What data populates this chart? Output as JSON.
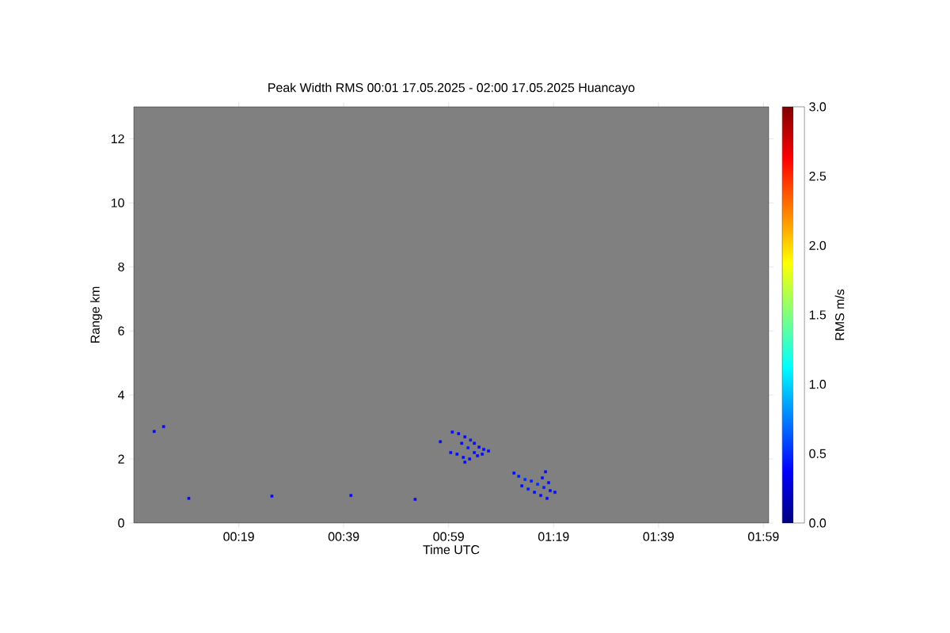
{
  "chart_data": {
    "type": "scatter",
    "title": "Peak Width RMS   00:01 17.05.2025 - 02:00 17.05.2025 Huancayo",
    "xlabel": "Time UTC",
    "ylabel": "Range km",
    "clabel": "RMS m/s",
    "x": [
      0.995,
      1.015,
      1.035,
      1.053,
      1.065,
      1.08,
      1.095,
      1.11,
      1.025,
      1.045,
      1.065,
      0.99,
      1.01,
      1.03,
      1.05,
      1.075,
      1.09,
      1.035,
      0.957,
      1.191,
      1.206,
      1.226,
      1.246,
      1.266,
      1.286,
      1.306,
      1.321,
      1.216,
      1.236,
      1.256,
      1.276,
      1.296,
      1.291,
      1.281,
      1.301,
      0.048,
      0.078,
      0.158,
      0.422,
      0.673,
      0.877
    ],
    "values": [
      2.84,
      2.79,
      2.69,
      2.59,
      2.49,
      2.37,
      2.3,
      2.25,
      2.49,
      2.35,
      2.2,
      2.2,
      2.15,
      2.05,
      2.0,
      2.1,
      2.15,
      1.9,
      2.54,
      1.56,
      1.46,
      1.36,
      1.31,
      1.21,
      1.11,
      1.01,
      0.96,
      1.16,
      1.06,
      0.96,
      0.86,
      0.77,
      1.6,
      1.41,
      1.26,
      2.86,
      3.01,
      0.77,
      0.84,
      0.86,
      0.74
    ],
    "cvalues": [
      0.4,
      0.4,
      0.4,
      0.45,
      0.4,
      0.4,
      0.4,
      0.4,
      0.4,
      0.45,
      0.4,
      0.4,
      0.4,
      0.4,
      0.4,
      0.4,
      0.4,
      0.4,
      0.4,
      0.4,
      0.45,
      0.5,
      0.45,
      0.5,
      0.45,
      0.4,
      0.4,
      0.4,
      0.45,
      0.4,
      0.4,
      0.4,
      0.4,
      0.4,
      0.4,
      0.4,
      0.4,
      0.4,
      0.4,
      0.4,
      0.4
    ],
    "marker": "square",
    "xlim": [
      -0.0167,
      2.0
    ],
    "xticks": [
      {
        "value": 0.3167,
        "label": "00:19"
      },
      {
        "value": 0.65,
        "label": "00:39"
      },
      {
        "value": 0.9833,
        "label": "00:59"
      },
      {
        "value": 1.3167,
        "label": "01:19"
      },
      {
        "value": 1.65,
        "label": "01:39"
      },
      {
        "value": 1.9833,
        "label": "01:59"
      }
    ],
    "ylim": [
      0,
      13
    ],
    "yticks": [
      0,
      2,
      4,
      6,
      8,
      10,
      12
    ],
    "clim": [
      0,
      3
    ],
    "cticks": [
      {
        "value": 0,
        "label": "0.0"
      },
      {
        "value": 0.5,
        "label": "0.5"
      },
      {
        "value": 1,
        "label": "1.0"
      },
      {
        "value": 1.5,
        "label": "1.5"
      },
      {
        "value": 2,
        "label": "2.0"
      },
      {
        "value": 2.5,
        "label": "2.5"
      },
      {
        "value": 3,
        "label": "3.0"
      }
    ]
  }
}
